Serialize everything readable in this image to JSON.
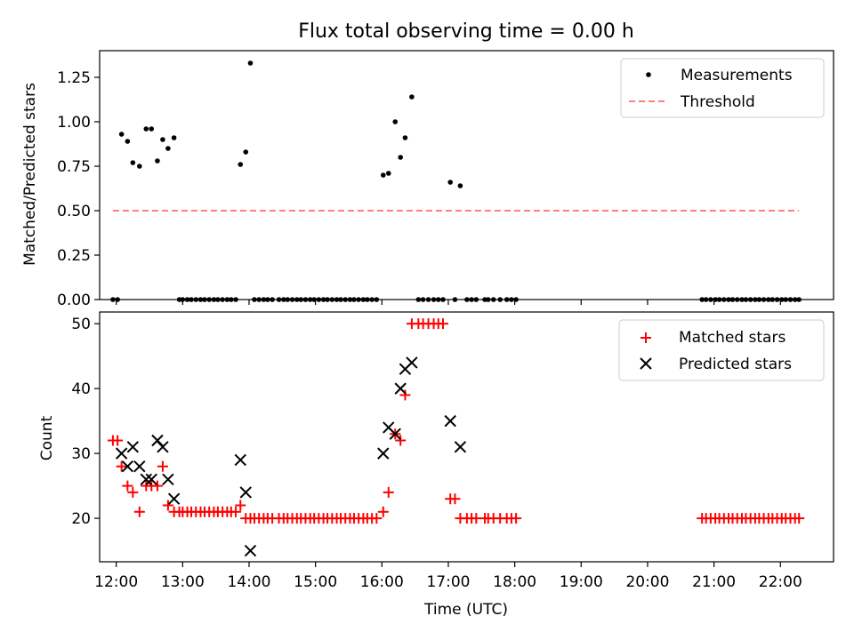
{
  "chart_data": [
    {
      "type": "scatter",
      "title": "Flux total observing time = 0.00 h",
      "ylabel": "Matched/Predicted stars",
      "xlabel": "",
      "xlim": [
        11.75,
        22.8
      ],
      "ylim": [
        0,
        1.4
      ],
      "yticks": [
        0.0,
        0.25,
        0.5,
        0.75,
        1.0,
        1.25
      ],
      "ytick_labels": [
        "0.00",
        "0.25",
        "0.50",
        "0.75",
        "1.00",
        "1.25"
      ],
      "legend": {
        "position": "top-right",
        "entries": [
          "Measurements",
          "Threshold"
        ]
      },
      "threshold": {
        "name": "Threshold",
        "value": 0.5,
        "x": [
          11.95,
          22.28
        ],
        "color": "#ff7f7f"
      },
      "series": [
        {
          "name": "Measurements",
          "color": "#000000",
          "x": [
            11.95,
            12.02,
            12.08,
            12.17,
            12.25,
            12.35,
            12.45,
            12.53,
            12.62,
            12.7,
            12.78,
            12.87,
            12.95,
            13.0,
            13.07,
            13.13,
            13.2,
            13.27,
            13.33,
            13.4,
            13.47,
            13.53,
            13.6,
            13.67,
            13.73,
            13.8,
            13.87,
            13.95,
            14.02,
            14.08,
            14.15,
            14.22,
            14.28,
            14.35,
            14.45,
            14.52,
            14.58,
            14.65,
            14.72,
            14.78,
            14.85,
            14.92,
            14.98,
            15.05,
            15.12,
            15.18,
            15.25,
            15.32,
            15.38,
            15.45,
            15.52,
            15.58,
            15.65,
            15.72,
            15.78,
            15.85,
            15.92,
            16.02,
            16.1,
            16.2,
            16.28,
            16.35,
            16.45,
            16.55,
            16.62,
            16.7,
            16.78,
            16.85,
            16.92,
            17.03,
            17.1,
            17.18,
            17.28,
            17.35,
            17.42,
            17.55,
            17.6,
            17.68,
            17.78,
            17.88,
            17.95,
            18.02,
            20.82,
            20.88,
            20.95,
            21.02,
            21.08,
            21.15,
            21.22,
            21.28,
            21.35,
            21.42,
            21.48,
            21.55,
            21.62,
            21.68,
            21.75,
            21.82,
            21.88,
            21.95,
            22.02,
            22.08,
            22.15,
            22.22,
            22.28
          ],
          "y": [
            0,
            0,
            0.93,
            0.89,
            0.77,
            0.75,
            0.96,
            0.96,
            0.78,
            0.9,
            0.85,
            0.91,
            0,
            0,
            0,
            0,
            0,
            0,
            0,
            0,
            0,
            0,
            0,
            0,
            0,
            0,
            0.76,
            0.83,
            1.33,
            0,
            0,
            0,
            0,
            0,
            0,
            0,
            0,
            0,
            0,
            0,
            0,
            0,
            0,
            0,
            0,
            0,
            0,
            0,
            0,
            0,
            0,
            0,
            0,
            0,
            0,
            0,
            0,
            0.7,
            0.71,
            1.0,
            0.8,
            0.91,
            1.14,
            0,
            0,
            0,
            0,
            0,
            0,
            0.66,
            0,
            0.64,
            0,
            0,
            0,
            0,
            0,
            0,
            0,
            0,
            0,
            0,
            0,
            0,
            0,
            0,
            0,
            0,
            0,
            0,
            0,
            0,
            0,
            0,
            0,
            0,
            0,
            0,
            0,
            0,
            0,
            0,
            0,
            0,
            0
          ]
        }
      ]
    },
    {
      "type": "scatter",
      "title": "",
      "xlabel": "Time (UTC)",
      "ylabel": "Count",
      "xlim": [
        11.75,
        22.8
      ],
      "ylim": [
        13.3,
        51.8
      ],
      "yticks": [
        20,
        30,
        40,
        50
      ],
      "ytick_labels": [
        "20",
        "30",
        "40",
        "50"
      ],
      "xticks": [
        12,
        13,
        14,
        15,
        16,
        17,
        18,
        19,
        20,
        21,
        22
      ],
      "xtick_labels": [
        "12:00",
        "13:00",
        "14:00",
        "15:00",
        "16:00",
        "17:00",
        "18:00",
        "19:00",
        "20:00",
        "21:00",
        "22:00"
      ],
      "legend": {
        "position": "top-right",
        "entries": [
          "Matched stars",
          "Predicted stars"
        ]
      },
      "series": [
        {
          "name": "Matched stars",
          "marker": "plus",
          "color": "#ff0000",
          "x": [
            11.95,
            12.02,
            12.08,
            12.17,
            12.25,
            12.35,
            12.45,
            12.53,
            12.62,
            12.7,
            12.78,
            12.87,
            12.95,
            13.0,
            13.07,
            13.13,
            13.2,
            13.27,
            13.33,
            13.4,
            13.47,
            13.53,
            13.6,
            13.67,
            13.73,
            13.8,
            13.87,
            13.95,
            14.02,
            14.08,
            14.15,
            14.22,
            14.28,
            14.35,
            14.45,
            14.52,
            14.58,
            14.65,
            14.72,
            14.78,
            14.85,
            14.92,
            14.98,
            15.05,
            15.12,
            15.18,
            15.25,
            15.32,
            15.38,
            15.45,
            15.52,
            15.58,
            15.65,
            15.72,
            15.78,
            15.85,
            15.92,
            16.02,
            16.1,
            16.2,
            16.28,
            16.35,
            16.45,
            16.55,
            16.62,
            16.7,
            16.78,
            16.85,
            16.92,
            17.03,
            17.1,
            17.18,
            17.28,
            17.35,
            17.42,
            17.55,
            17.6,
            17.68,
            17.78,
            17.88,
            17.95,
            18.02,
            20.82,
            20.88,
            20.95,
            21.02,
            21.08,
            21.15,
            21.22,
            21.28,
            21.35,
            21.42,
            21.48,
            21.55,
            21.62,
            21.68,
            21.75,
            21.82,
            21.88,
            21.95,
            22.02,
            22.08,
            22.15,
            22.22,
            22.28
          ],
          "y": [
            32,
            32,
            28,
            25,
            24,
            21,
            25,
            25,
            25,
            28,
            22,
            21,
            21,
            21,
            21,
            21,
            21,
            21,
            21,
            21,
            21,
            21,
            21,
            21,
            21,
            21,
            22,
            20,
            20,
            20,
            20,
            20,
            20,
            20,
            20,
            20,
            20,
            20,
            20,
            20,
            20,
            20,
            20,
            20,
            20,
            20,
            20,
            20,
            20,
            20,
            20,
            20,
            20,
            20,
            20,
            20,
            20,
            21,
            24,
            33,
            32,
            39,
            50,
            50,
            50,
            50,
            50,
            50,
            50,
            23,
            23,
            20,
            20,
            20,
            20,
            20,
            20,
            20,
            20,
            20,
            20,
            20,
            20,
            20,
            20,
            20,
            20,
            20,
            20,
            20,
            20,
            20,
            20,
            20,
            20,
            20,
            20,
            20,
            20,
            20,
            20,
            20,
            20,
            20,
            20
          ]
        },
        {
          "name": "Predicted stars",
          "marker": "x",
          "color": "#000000",
          "x": [
            12.08,
            12.17,
            12.25,
            12.35,
            12.45,
            12.53,
            12.62,
            12.7,
            12.78,
            12.87,
            13.87,
            13.95,
            14.02,
            16.02,
            16.1,
            16.2,
            16.28,
            16.35,
            16.45,
            17.03,
            17.18
          ],
          "y": [
            30,
            28,
            31,
            28,
            26,
            26,
            32,
            31,
            26,
            23,
            29,
            24,
            15,
            30,
            34,
            33,
            40,
            43,
            44,
            35,
            31
          ]
        }
      ]
    }
  ]
}
